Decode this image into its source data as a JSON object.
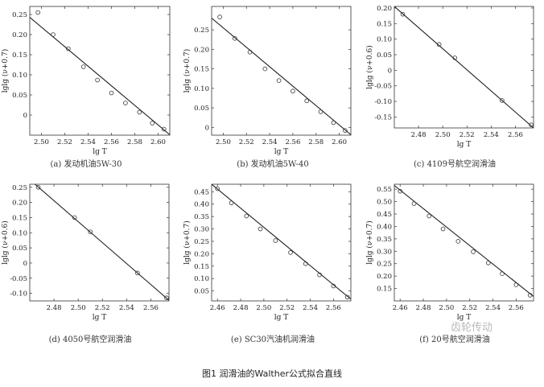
{
  "figure_caption": "图1 润滑油的Walther公式拟合直线",
  "watermark": "齿轮传动",
  "chart_data": [
    {
      "type": "scatter",
      "caption": "(a) 发动机油5W-30",
      "xlabel": "lg T",
      "ylabel": "lglg (ν+0.7)",
      "xlim": [
        2.49,
        2.61
      ],
      "ylim": [
        -0.05,
        0.27
      ],
      "xticks": [
        "2.50",
        "2.52",
        "2.54",
        "2.56",
        "2.58",
        "2.60"
      ],
      "yticks": [
        "0",
        "0.05",
        "0.10",
        "0.15",
        "0.20",
        "0.25"
      ],
      "points": {
        "x": [
          2.497,
          2.51,
          2.523,
          2.536,
          2.548,
          2.56,
          2.572,
          2.584,
          2.595,
          2.605
        ],
        "y": [
          0.255,
          0.2,
          0.165,
          0.12,
          0.087,
          0.055,
          0.03,
          0.007,
          -0.02,
          -0.035
        ]
      },
      "fit_line": {
        "x": [
          2.49,
          2.61
        ],
        "y": [
          0.243,
          -0.049
        ]
      }
    },
    {
      "type": "scatter",
      "caption": "(b) 发动机油5W-40",
      "xlabel": "lg T",
      "ylabel": "lglg (ν+0.7)",
      "xlim": [
        2.49,
        2.61
      ],
      "ylim": [
        -0.02,
        0.31
      ],
      "xticks": [
        "2.50",
        "2.52",
        "2.54",
        "2.56",
        "2.58",
        "2.60"
      ],
      "yticks": [
        "0",
        "0.05",
        "0.10",
        "0.15",
        "0.20",
        "0.25"
      ],
      "points": {
        "x": [
          2.497,
          2.51,
          2.523,
          2.536,
          2.548,
          2.56,
          2.572,
          2.584,
          2.595,
          2.605
        ],
        "y": [
          0.283,
          0.228,
          0.193,
          0.15,
          0.12,
          0.093,
          0.068,
          0.04,
          0.012,
          -0.008
        ]
      },
      "fit_line": {
        "x": [
          2.49,
          2.61
        ],
        "y": [
          0.28,
          -0.019
        ]
      }
    },
    {
      "type": "scatter",
      "caption": "(c) 4109号航空润滑油",
      "xlabel": "lg T",
      "ylabel": "lglg (ν+0.6)",
      "xlim": [
        2.46,
        2.575
      ],
      "ylim": [
        -0.185,
        0.205
      ],
      "xticks": [
        "2.48",
        "2.50",
        "2.52",
        "2.54",
        "2.56"
      ],
      "yticks": [
        "-0.15",
        "-0.10",
        "-0.05",
        "0",
        "0.05",
        "0.10",
        "0.15",
        "0.20"
      ],
      "points": {
        "x": [
          2.467,
          2.497,
          2.51,
          2.549,
          2.573
        ],
        "y": [
          0.18,
          0.083,
          0.04,
          -0.097,
          -0.175
        ]
      },
      "fit_line": {
        "x": [
          2.46,
          2.575
        ],
        "y": [
          0.205,
          -0.185
        ]
      }
    },
    {
      "type": "scatter",
      "caption": "(d) 4050号航空润滑油",
      "xlabel": "lg T",
      "ylabel": "lglg (ν+0.6)",
      "xlim": [
        2.46,
        2.575
      ],
      "ylim": [
        -0.125,
        0.26
      ],
      "xticks": [
        "2.48",
        "2.50",
        "2.52",
        "2.54",
        "2.56"
      ],
      "yticks": [
        "-0.10",
        "-0.05",
        "0",
        "0.05",
        "0.10",
        "0.15",
        "0.20",
        "0.25"
      ],
      "points": {
        "x": [
          2.467,
          2.497,
          2.51,
          2.549,
          2.573
        ],
        "y": [
          0.25,
          0.15,
          0.103,
          -0.033,
          -0.115
        ]
      },
      "fit_line": {
        "x": [
          2.46,
          2.575
        ],
        "y": [
          0.275,
          -0.123
        ]
      }
    },
    {
      "type": "scatter",
      "caption": "(e) SC30汽油机润滑油",
      "xlabel": "lg T",
      "ylabel": "lglg (ν+0.7)",
      "xlim": [
        2.455,
        2.575
      ],
      "ylim": [
        0.01,
        0.48
      ],
      "xticks": [
        "2.46",
        "2.48",
        "2.50",
        "2.52",
        "2.54",
        "2.56"
      ],
      "yticks": [
        "0.05",
        "0.10",
        "0.15",
        "0.20",
        "0.25",
        "0.30",
        "0.35",
        "0.40",
        "0.45"
      ],
      "points": {
        "x": [
          2.46,
          2.472,
          2.485,
          2.497,
          2.51,
          2.523,
          2.536,
          2.548,
          2.56,
          2.572
        ],
        "y": [
          0.462,
          0.405,
          0.352,
          0.3,
          0.253,
          0.205,
          0.16,
          0.115,
          0.07,
          0.025
        ]
      },
      "fit_line": {
        "x": [
          2.455,
          2.575
        ],
        "y": [
          0.48,
          0.017
        ]
      }
    },
    {
      "type": "scatter",
      "caption": "(f) 20号航空润滑油",
      "xlabel": "lg T",
      "ylabel": "lglg (ν+0.7)",
      "xlim": [
        2.455,
        2.575
      ],
      "ylim": [
        0.1,
        0.57
      ],
      "xticks": [
        "2.46",
        "2.48",
        "2.50",
        "2.52",
        "2.54",
        "2.56"
      ],
      "yticks": [
        "0.15",
        "0.20",
        "0.25",
        "0.30",
        "0.35",
        "0.40",
        "0.45",
        "0.50",
        "0.55"
      ],
      "points": {
        "x": [
          2.46,
          2.472,
          2.485,
          2.497,
          2.51,
          2.523,
          2.536,
          2.548,
          2.56,
          2.572
        ],
        "y": [
          0.542,
          0.492,
          0.442,
          0.39,
          0.34,
          0.298,
          0.253,
          0.21,
          0.165,
          0.123
        ]
      },
      "fit_line": {
        "x": [
          2.455,
          2.575
        ],
        "y": [
          0.565,
          0.118
        ]
      }
    }
  ]
}
